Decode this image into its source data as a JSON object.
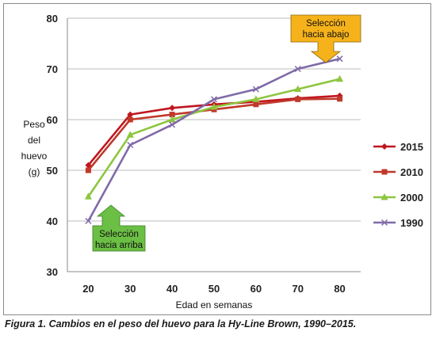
{
  "caption": "Figura 1. Cambios en el peso del huevo para la Hy-Line Brown, 1990–2015.",
  "chart_data": {
    "type": "line",
    "xlabel": "Edad en semanas",
    "ylabel_lines": [
      "Peso",
      "del",
      "huevo",
      "(g)"
    ],
    "x": [
      20,
      30,
      40,
      50,
      60,
      70,
      80
    ],
    "xlim": [
      15,
      85
    ],
    "ylim": [
      30,
      80
    ],
    "y_ticks": [
      30,
      40,
      50,
      60,
      70,
      80
    ],
    "grid": true,
    "legend_position": "right",
    "series": [
      {
        "name": "2015",
        "color": "#c0161f",
        "marker": "diamond",
        "values": [
          51,
          61,
          62.3,
          63,
          63.5,
          64.2,
          64.7
        ]
      },
      {
        "name": "2010",
        "color": "#c0392b",
        "marker": "square",
        "values": [
          50,
          60,
          61,
          62,
          63,
          64,
          64.1
        ]
      },
      {
        "name": "2000",
        "color": "#8dc63f",
        "marker": "triangle",
        "values": [
          44.8,
          57,
          60,
          62.5,
          64,
          66,
          68
        ]
      },
      {
        "name": "1990",
        "color": "#7f6aa8",
        "marker": "x",
        "values": [
          40,
          55,
          59,
          64,
          66,
          70,
          72
        ]
      }
    ],
    "annotations": [
      {
        "id": "down",
        "lines": [
          "Selección",
          "hacia abajo"
        ],
        "color": "#f6b21a"
      },
      {
        "id": "up",
        "lines": [
          "Selección",
          "hacia arriba"
        ],
        "color": "#6bbf44"
      }
    ]
  }
}
